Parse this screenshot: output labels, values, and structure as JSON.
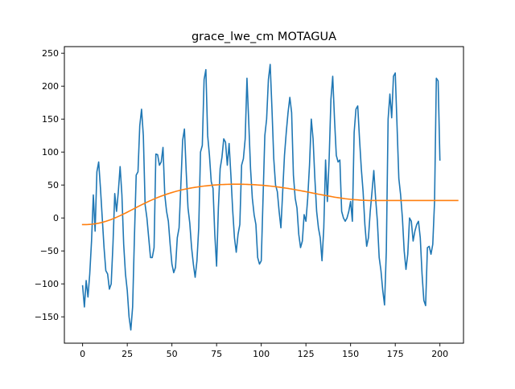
{
  "chart_data": {
    "type": "line",
    "title": "grace_lwe_cm MOTAGUA",
    "xlabel": "",
    "ylabel": "",
    "xlim": [
      -10.2,
      213.2
    ],
    "ylim": [
      -190,
      260
    ],
    "xticks": [
      0,
      25,
      50,
      75,
      100,
      125,
      150,
      175,
      200
    ],
    "yticks": [
      -150,
      -100,
      -50,
      0,
      50,
      100,
      150,
      200,
      250
    ],
    "grid": false,
    "legend": "none",
    "series": [
      {
        "color": "#1f77b4",
        "values": [
          -103,
          -135,
          -95,
          -120,
          -85,
          -35,
          35,
          -20,
          70,
          85,
          45,
          0,
          -45,
          -80,
          -85,
          -108,
          -100,
          -40,
          37,
          10,
          40,
          78,
          35,
          -40,
          -85,
          -110,
          -150,
          -170,
          -135,
          -30,
          65,
          70,
          140,
          165,
          125,
          20,
          0,
          -30,
          -60,
          -60,
          -45,
          97,
          96,
          80,
          85,
          107,
          35,
          10,
          -5,
          -40,
          -70,
          -83,
          -75,
          -30,
          -15,
          50,
          118,
          135,
          70,
          15,
          -8,
          -45,
          -70,
          -90,
          -65,
          -15,
          100,
          110,
          210,
          225,
          125,
          95,
          55,
          45,
          -25,
          -73,
          15,
          75,
          92,
          120,
          115,
          80,
          113,
          65,
          12,
          -30,
          -52,
          -25,
          -10,
          80,
          90,
          120,
          212,
          145,
          75,
          30,
          5,
          -10,
          -60,
          -70,
          -65,
          30,
          125,
          150,
          210,
          233,
          165,
          90,
          50,
          40,
          10,
          -15,
          40,
          95,
          130,
          160,
          183,
          160,
          65,
          30,
          15,
          -25,
          -45,
          -35,
          5,
          -5,
          30,
          80,
          150,
          120,
          60,
          10,
          -15,
          -30,
          -65,
          -15,
          88,
          25,
          90,
          180,
          215,
          150,
          95,
          85,
          88,
          10,
          0,
          -5,
          0,
          10,
          25,
          -5,
          130,
          165,
          170,
          120,
          75,
          40,
          -10,
          -43,
          -30,
          10,
          40,
          72,
          30,
          -5,
          -60,
          -80,
          -110,
          -132,
          -50,
          150,
          188,
          152,
          215,
          220,
          140,
          60,
          35,
          0,
          -50,
          -78,
          -55,
          0,
          -5,
          -35,
          -20,
          -10,
          -5,
          -30,
          -85,
          -125,
          -133,
          -45,
          -43,
          -55,
          -40,
          25,
          212,
          208,
          88
        ]
      },
      {
        "color": "#ff7f0e",
        "values": [
          -10,
          -10,
          -10,
          -9.9,
          -9.7,
          -9.5,
          -9.2,
          -8.8,
          -8.4,
          -7.9,
          -7.3,
          -6.6,
          -5.9,
          -5.1,
          -4.2,
          -3.3,
          -2.3,
          -1.2,
          -0.1,
          1.1,
          2.3,
          3.5,
          4.8,
          6.1,
          7.4,
          8.8,
          10.2,
          11.6,
          13,
          14.4,
          15.8,
          17.2,
          18.6,
          20,
          21.3,
          22.6,
          23.9,
          25.2,
          26.4,
          27.6,
          28.8,
          29.9,
          31,
          32.1,
          33.1,
          34.1,
          35.1,
          36,
          36.9,
          37.8,
          38.6,
          39.4,
          40.2,
          40.9,
          41.6,
          42.3,
          42.9,
          43.5,
          44.1,
          44.6,
          45.1,
          45.6,
          46.1,
          46.5,
          46.9,
          47.3,
          47.7,
          48.1,
          48.4,
          48.7,
          49,
          49.3,
          49.6,
          49.8,
          50,
          50.2,
          50.4,
          50.6,
          50.7,
          50.8,
          50.9,
          51,
          51.1,
          51.1,
          51.2,
          51.2,
          51.2,
          51.2,
          51.2,
          51.1,
          51.1,
          51,
          50.9,
          50.8,
          50.7,
          50.6,
          50.5,
          50.3,
          50.1,
          49.9,
          49.7,
          49.5,
          49.3,
          49,
          48.7,
          48.4,
          48.1,
          47.8,
          47.5,
          47.1,
          46.8,
          46.4,
          46,
          45.6,
          45.2,
          44.8,
          44.3,
          43.9,
          43.4,
          42.9,
          42.4,
          41.9,
          41.4,
          40.9,
          40.4,
          39.9,
          39.3,
          38.8,
          38.3,
          37.7,
          37.2,
          36.7,
          36.1,
          35.6,
          35.1,
          34.6,
          34.1,
          33.6,
          33.1,
          32.6,
          32.1,
          31.6,
          31.2,
          30.8,
          30.4,
          30,
          29.6,
          29.2,
          28.9,
          28.6,
          28.3,
          28,
          27.8,
          27.6,
          27.4,
          27.2,
          27,
          26.9,
          26.8,
          26.7,
          26.6,
          26.6,
          26.5,
          26.5,
          26.5,
          26.5,
          26.5,
          26.5,
          26.5,
          26.5,
          26.5,
          26.5,
          26.5,
          26.5,
          26.5,
          26.5,
          26.5,
          26.5,
          26.5,
          26.5,
          26.5,
          26.5,
          26.5,
          26.5,
          26.5,
          26.5,
          26.5,
          26.5,
          26.5,
          26.5,
          26.5,
          26.5,
          26.5,
          26.5,
          26.5,
          26.5,
          26.5,
          26.5,
          26.5,
          26.5,
          26.5,
          26.5,
          26.5,
          26.5,
          26.5,
          26.5,
          26.5,
          26.5,
          26.5,
          26.5,
          26.5
        ]
      }
    ]
  }
}
